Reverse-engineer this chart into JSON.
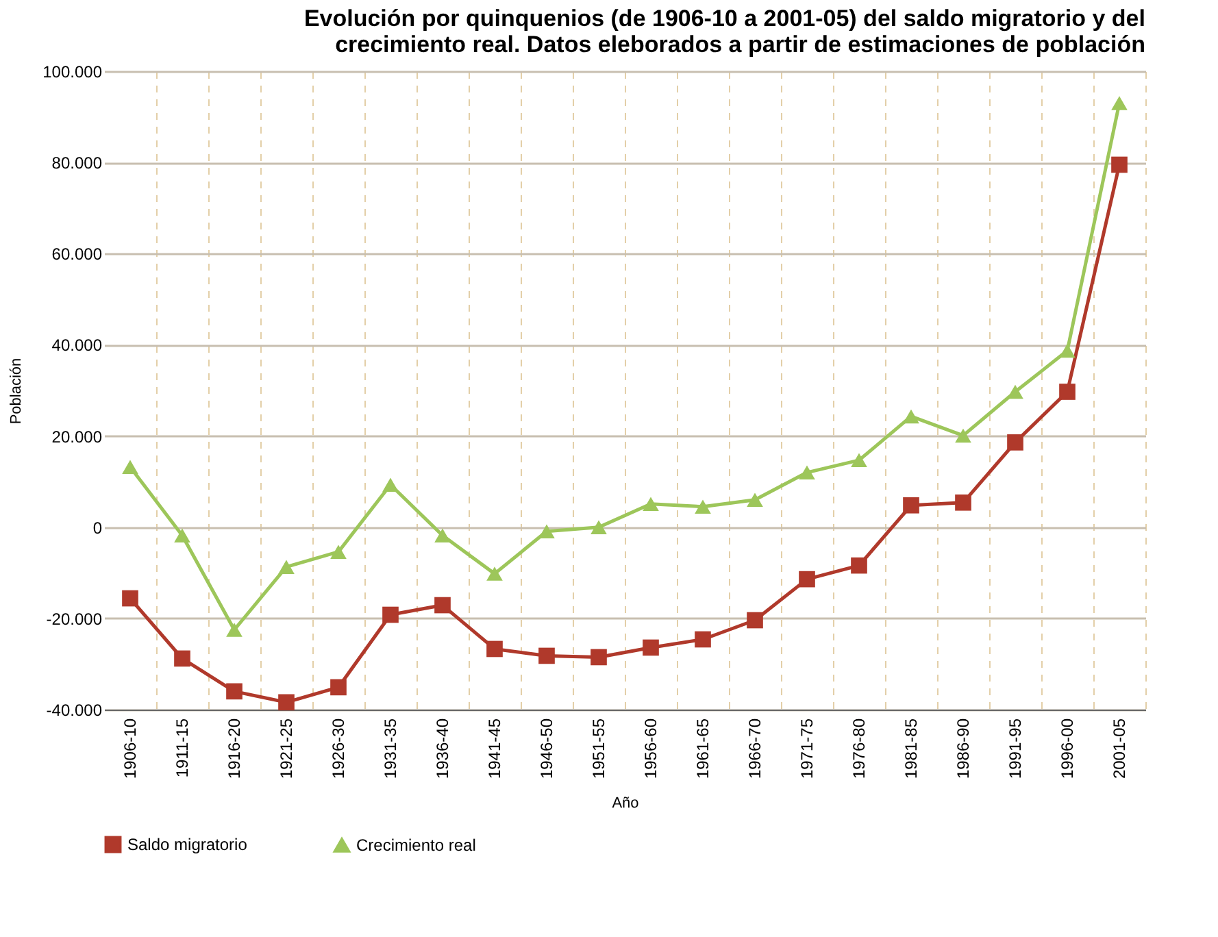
{
  "chart_data": {
    "type": "line",
    "title": [
      "Evolución por quinquenios  (de 1906-10 a 2001-05) del saldo migratorio y del",
      "crecimiento real. Datos eleborados a partir de estimaciones de población"
    ],
    "xlabel": "Año",
    "ylabel": "Población",
    "categories": [
      "1906-10",
      "1911-15",
      "1916-20",
      "1921-25",
      "1926-30",
      "1931-35",
      "1936-40",
      "1941-45",
      "1946-50",
      "1951-55",
      "1956-60",
      "1961-65",
      "1966-70",
      "1971-75",
      "1976-80",
      "1981-85",
      "1986-90",
      "1991-95",
      "1996-00",
      "2001-05"
    ],
    "series": [
      {
        "name": "Saldo migratorio",
        "color": "#b0392b",
        "marker": "square",
        "values": [
          -15600,
          -28800,
          -36000,
          -38400,
          -35100,
          -19200,
          -17100,
          -26700,
          -28200,
          -28500,
          -26400,
          -24600,
          -20400,
          -11400,
          -8400,
          4800,
          5400,
          18600,
          29700,
          79500
        ]
      },
      {
        "name": "Crecimiento real",
        "color": "#9dc65a",
        "marker": "triangle",
        "values": [
          13200,
          -1800,
          -22500,
          -8700,
          -5400,
          9300,
          -1800,
          -10200,
          -900,
          0,
          5100,
          4500,
          6000,
          12000,
          14700,
          24300,
          20100,
          29700,
          38700,
          93000
        ]
      }
    ],
    "ylim": [
      -40000,
      100000
    ],
    "yticks": [
      {
        "value": -40000,
        "label": "-40.000"
      },
      {
        "value": -20000,
        "label": "-20.000"
      },
      0,
      {
        "value": 20000,
        "label": "20.000"
      },
      {
        "value": 40000,
        "label": "40.000"
      },
      {
        "value": 60000,
        "label": "60.000"
      },
      {
        "value": 80000,
        "label": "80.000"
      },
      {
        "value": 100000,
        "label": "100.000"
      }
    ],
    "grid": true,
    "legend": "bottom",
    "line_style": "solid"
  }
}
